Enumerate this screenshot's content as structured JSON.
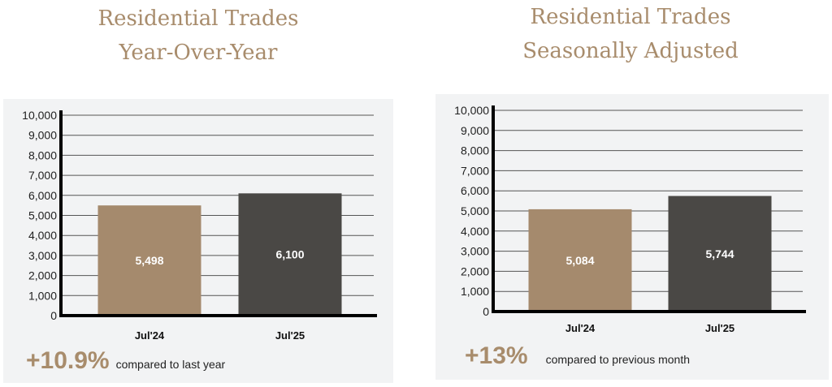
{
  "chart_data": [
    {
      "type": "bar",
      "title_line1": "Residential Trades",
      "title_line2": "Year-Over-Year",
      "categories": [
        "Jul'24",
        "Jul'25"
      ],
      "values": [
        5498,
        6100
      ],
      "value_labels": [
        "5,498",
        "6,100"
      ],
      "ylim": [
        0,
        10000
      ],
      "yticks": [
        "0",
        "1,000",
        "2,000",
        "3,000",
        "4,000",
        "5,000",
        "6,000",
        "7,000",
        "8,000",
        "9,000",
        "10,000"
      ],
      "bar_colors": [
        "#a58a6d",
        "#4a4845"
      ],
      "grid": true,
      "change": "+10.9%",
      "change_label": "compared to last year"
    },
    {
      "type": "bar",
      "title_line1": "Residential Trades",
      "title_line2": "Seasonally Adjusted",
      "categories": [
        "Jul'24",
        "Jul'25"
      ],
      "values": [
        5084,
        5744
      ],
      "value_labels": [
        "5,084",
        "5,744"
      ],
      "ylim": [
        0,
        10000
      ],
      "yticks": [
        "0",
        "1,000",
        "2,000",
        "3,000",
        "4,000",
        "5,000",
        "6,000",
        "7,000",
        "8,000",
        "9,000",
        "10,000"
      ],
      "bar_colors": [
        "#a58a6d",
        "#4a4845"
      ],
      "grid": true,
      "change": "+13%",
      "change_label": "compared to previous month"
    }
  ]
}
